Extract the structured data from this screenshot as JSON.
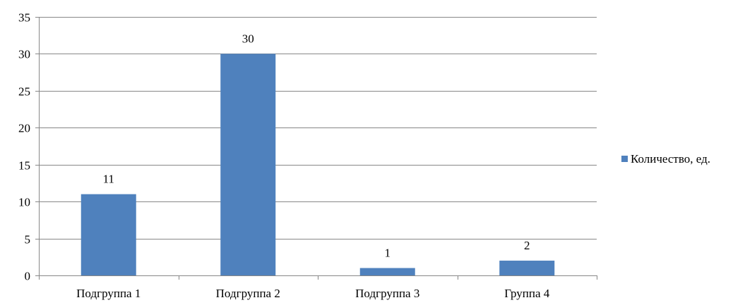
{
  "chart_data": {
    "type": "bar",
    "categories": [
      "Подгруппа 1",
      "Подгруппа 2",
      "Подгруппа 3",
      "Группа 4"
    ],
    "series": [
      {
        "name": "Количество, ед.",
        "values": [
          11,
          30,
          1,
          2
        ],
        "color": "#4f81bd"
      }
    ],
    "data_labels": [
      "11",
      "30",
      "1",
      "2"
    ],
    "y_ticks": [
      "0",
      "5",
      "10",
      "15",
      "20",
      "25",
      "30",
      "35"
    ],
    "ylim": [
      0,
      35
    ],
    "grid": true,
    "legend_position": "right"
  }
}
